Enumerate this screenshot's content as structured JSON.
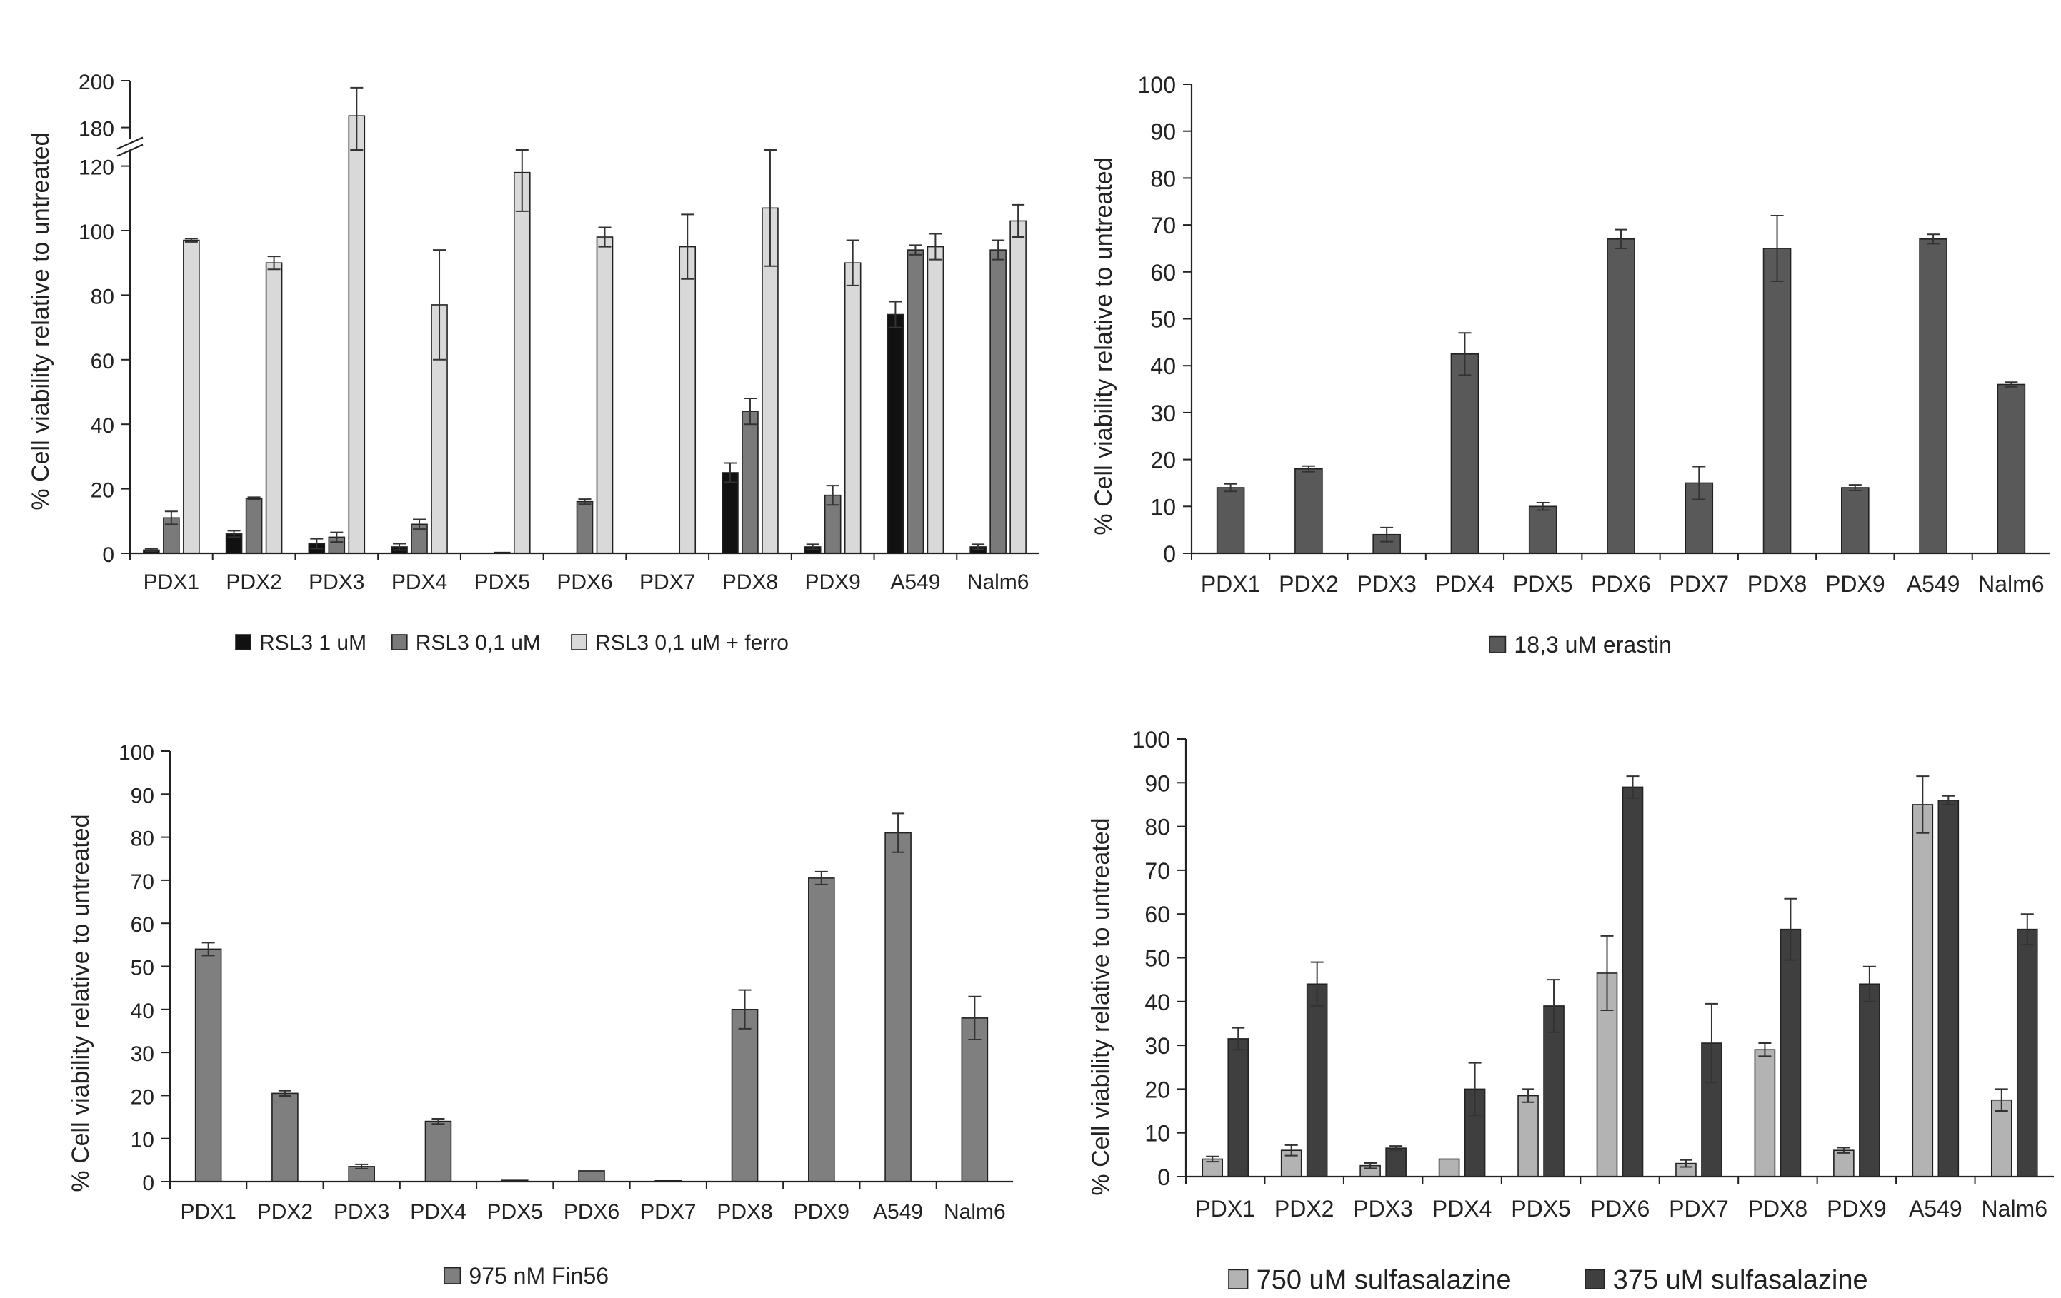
{
  "chart_data": [
    {
      "id": "panel-a",
      "type": "bar",
      "ylabel": "% Cell viability relative to untreated",
      "y_ticks_lower": [
        0,
        20,
        40,
        60,
        80,
        100,
        120
      ],
      "y_ticks_upper": [
        180,
        200
      ],
      "axis_break": [
        125,
        175
      ],
      "ylim": [
        0,
        200
      ],
      "categories": [
        "PDX1",
        "PDX2",
        "PDX3",
        "PDX4",
        "PDX5",
        "PDX6",
        "PDX7",
        "PDX8",
        "PDX9",
        "A549",
        "Nalm6"
      ],
      "series": [
        {
          "name": "RSL3 1 uM",
          "color": "#111111",
          "values": [
            1,
            6,
            3,
            2,
            0,
            0,
            0,
            25,
            2,
            74,
            2
          ],
          "errors": [
            0.4,
            1,
            1.5,
            1,
            0,
            0,
            0,
            3,
            0.8,
            4,
            0.8
          ]
        },
        {
          "name": "RSL3 0,1 uM",
          "color": "#7a7a7a",
          "values": [
            11,
            17,
            5,
            9,
            0.3,
            16,
            0,
            44,
            18,
            94,
            94
          ],
          "errors": [
            2,
            0.4,
            1.5,
            1.5,
            0,
            0.8,
            0,
            4,
            3,
            1.5,
            3
          ]
        },
        {
          "name": "RSL3 0,1 uM + ferro",
          "color": "#d9d9d9",
          "values": [
            97,
            90,
            185,
            77,
            118,
            98,
            95,
            107,
            90,
            95,
            103
          ],
          "errors": [
            0.5,
            2,
            12,
            17,
            12,
            3,
            10,
            18,
            7,
            4,
            5
          ]
        }
      ],
      "legend_position": "bottom"
    },
    {
      "id": "panel-b",
      "type": "bar",
      "ylabel": "% Cell viability relative to untreated",
      "y_ticks": [
        0,
        10,
        20,
        30,
        40,
        50,
        60,
        70,
        80,
        90,
        100
      ],
      "ylim": [
        0,
        100
      ],
      "categories": [
        "PDX1",
        "PDX2",
        "PDX3",
        "PDX4",
        "PDX5",
        "PDX6",
        "PDX7",
        "PDX8",
        "PDX9",
        "A549",
        "Nalm6"
      ],
      "series": [
        {
          "name": "18,3 uM erastin",
          "color": "#595959",
          "values": [
            14,
            18,
            4,
            42.5,
            10,
            67,
            15,
            65,
            14,
            67,
            36
          ],
          "errors": [
            0.8,
            0.6,
            1.5,
            4.5,
            0.8,
            2,
            3.5,
            7,
            0.6,
            1,
            0.5
          ]
        }
      ],
      "legend_position": "bottom"
    },
    {
      "id": "panel-c",
      "type": "bar",
      "ylabel": "% Cell viability relative to untreated",
      "y_ticks": [
        0,
        10,
        20,
        30,
        40,
        50,
        60,
        70,
        80,
        90,
        100
      ],
      "ylim": [
        0,
        100
      ],
      "categories": [
        "PDX1",
        "PDX2",
        "PDX3",
        "PDX4",
        "PDX5",
        "PDX6",
        "PDX7",
        "PDX8",
        "PDX9",
        "A549",
        "Nalm6"
      ],
      "series": [
        {
          "name": "975 nM Fin56",
          "color": "#7f7f7f",
          "values": [
            54,
            20.5,
            3.5,
            14,
            0.3,
            2.5,
            0.2,
            40,
            70.5,
            81,
            38
          ],
          "errors": [
            1.5,
            0.6,
            0.5,
            0.6,
            0,
            0,
            0,
            4.5,
            1.5,
            4.5,
            5
          ]
        }
      ],
      "legend_position": "bottom"
    },
    {
      "id": "panel-d",
      "type": "bar",
      "ylabel": "% Cell viability relative to untreated",
      "y_ticks": [
        0,
        10,
        20,
        30,
        40,
        50,
        60,
        70,
        80,
        90,
        100
      ],
      "ylim": [
        0,
        100
      ],
      "categories": [
        "PDX1",
        "PDX2",
        "PDX3",
        "PDX4",
        "PDX5",
        "PDX6",
        "PDX7",
        "PDX8",
        "PDX9",
        "A549",
        "Nalm6"
      ],
      "series": [
        {
          "name": "750 uM sulfasalazine",
          "color": "#b3b3b3",
          "values": [
            4,
            6,
            2.5,
            4,
            18.5,
            46.5,
            3,
            29,
            6,
            85,
            17.5
          ],
          "errors": [
            0.6,
            1.2,
            0.6,
            0,
            1.5,
            8.5,
            0.8,
            1.5,
            0.6,
            6.5,
            2.5
          ]
        },
        {
          "name": "375 uM sulfasalazine",
          "color": "#3f3f3f",
          "values": [
            31.5,
            44,
            6.5,
            20,
            39,
            89,
            30.5,
            56.5,
            44,
            86,
            56.5
          ],
          "errors": [
            2.5,
            5,
            0.5,
            6,
            6,
            2.5,
            9,
            7,
            4,
            1,
            3.5
          ]
        }
      ],
      "legend_position": "bottom"
    }
  ]
}
